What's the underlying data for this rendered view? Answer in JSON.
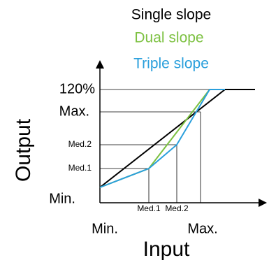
{
  "legend": {
    "items": [
      {
        "label": "Single slope",
        "color": "#000000"
      },
      {
        "label": "Dual slope",
        "color": "#7dc142"
      },
      {
        "label": "Triple slope",
        "color": "#2a9fdc"
      }
    ]
  },
  "y_axis": {
    "title": "Output",
    "labels": [
      "120%",
      "Max.",
      "Med.2",
      "Med.1",
      "Min."
    ]
  },
  "x_axis": {
    "title": "Input",
    "labels": [
      "Med.1",
      "Med.2",
      "Min.",
      "Max."
    ]
  }
}
